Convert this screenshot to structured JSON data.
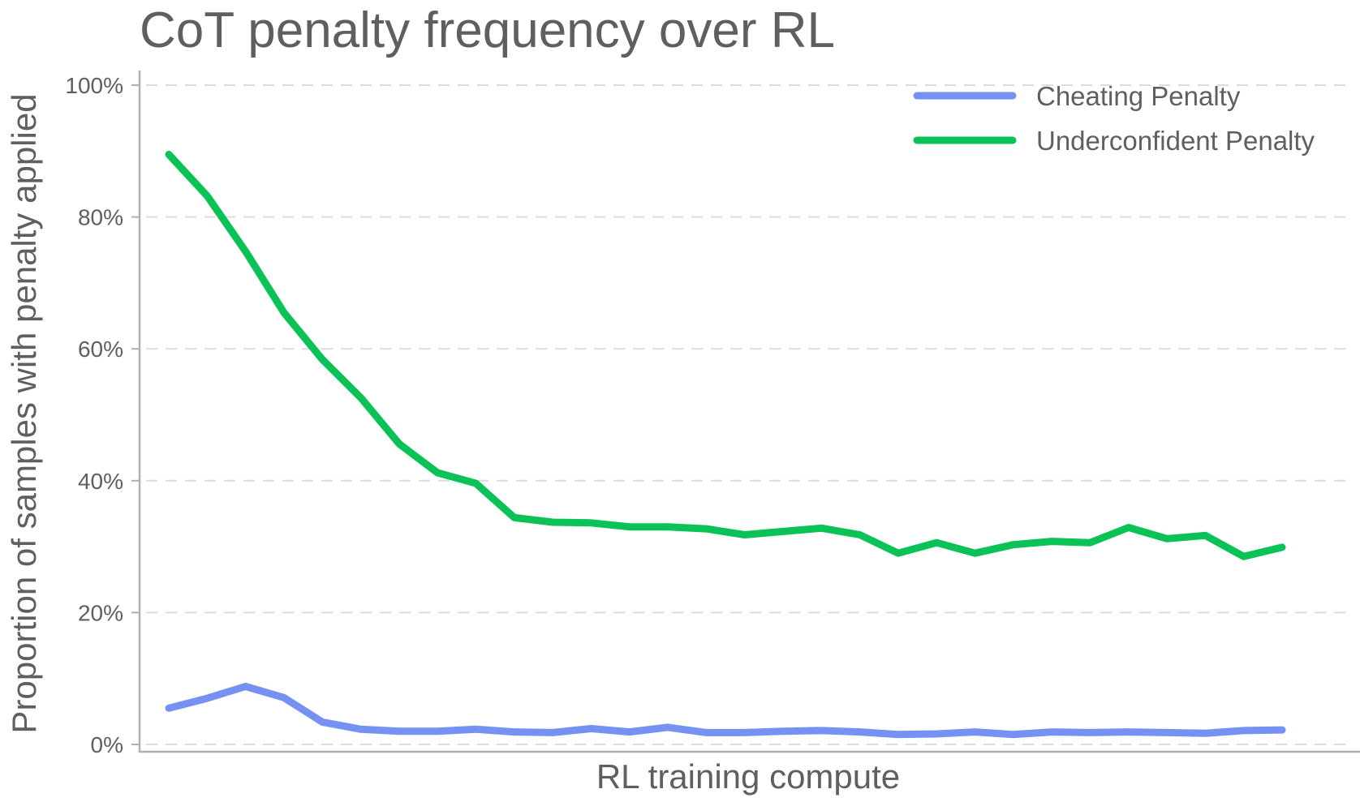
{
  "chart_data": {
    "type": "line",
    "title": "CoT penalty frequency over RL",
    "xlabel": "RL training compute",
    "ylabel": "Proportion of samples with penalty applied",
    "ylim": [
      0,
      100
    ],
    "yticks": [
      0,
      20,
      40,
      60,
      80,
      100
    ],
    "ytick_labels": [
      "0%",
      "20%",
      "40%",
      "60%",
      "80%",
      "100%"
    ],
    "grid": "horizontal dashed",
    "legend_position": "top-right",
    "x": [
      1,
      2,
      3,
      4,
      5,
      6,
      7,
      8,
      9,
      10,
      11,
      12,
      13,
      14,
      15,
      16,
      17,
      18,
      19,
      20,
      21,
      22,
      23,
      24,
      25,
      26,
      27,
      28,
      29,
      30
    ],
    "series": [
      {
        "name": "Cheating Penalty",
        "color": "#7592f2",
        "values": [
          5.5,
          7.0,
          8.8,
          7.1,
          3.4,
          2.3,
          2.0,
          2.0,
          2.3,
          1.9,
          1.8,
          2.4,
          1.9,
          2.6,
          1.8,
          1.8,
          2.0,
          2.1,
          1.9,
          1.5,
          1.6,
          1.9,
          1.5,
          1.9,
          1.8,
          1.9,
          1.8,
          1.7,
          2.1,
          2.2
        ]
      },
      {
        "name": "Underconfident Penalty",
        "color": "#0ac256",
        "values": [
          89.5,
          83.2,
          74.8,
          65.5,
          58.4,
          52.6,
          45.6,
          41.2,
          39.6,
          34.4,
          33.7,
          33.6,
          33.0,
          33.0,
          32.7,
          31.8,
          32.3,
          32.8,
          31.8,
          29.0,
          30.6,
          29.0,
          30.3,
          30.8,
          30.6,
          32.9,
          31.2,
          31.7,
          28.5,
          29.9
        ]
      }
    ]
  }
}
